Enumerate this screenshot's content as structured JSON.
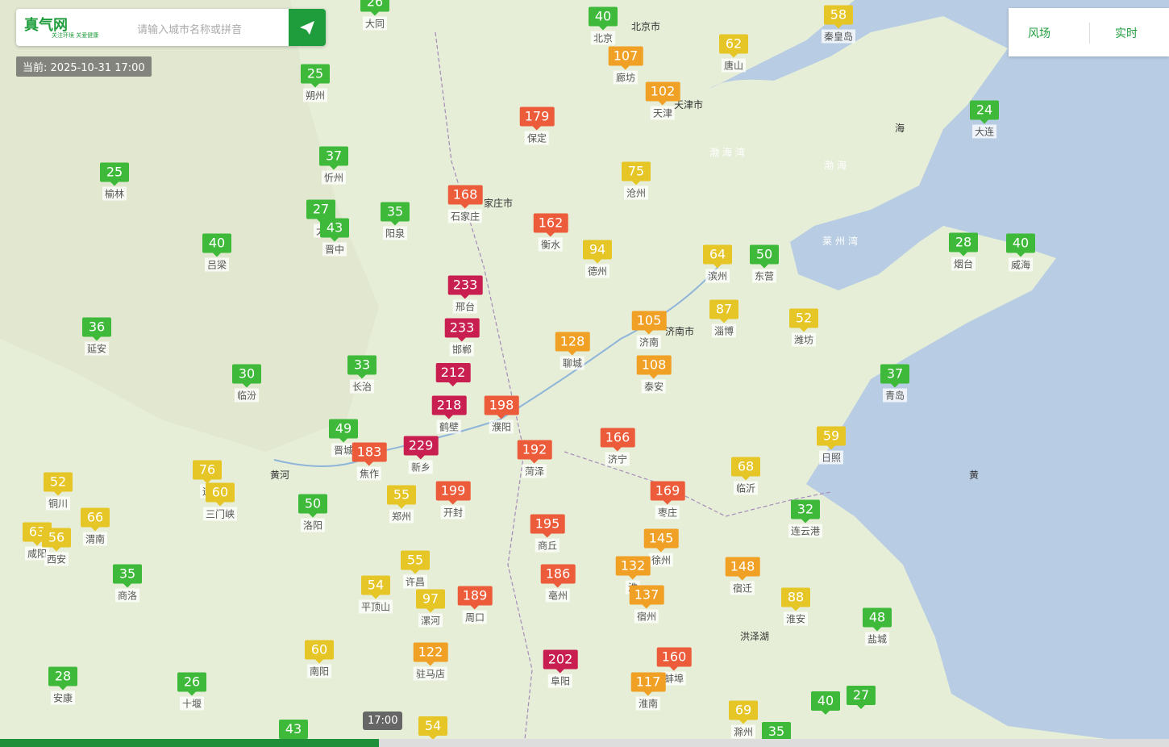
{
  "header": {
    "logo": "真气网",
    "tagline": "关注环境 关爱健康",
    "search_placeholder": "请输入城市名称或拼音",
    "current_time": "当前: 2025-10-31 17:00"
  },
  "tools": [
    "风场",
    "实时"
  ],
  "timeline": {
    "time": "17:00"
  },
  "map_labels": [
    "北京市",
    "天津市",
    "家庄市",
    "济南市",
    "渤海湾",
    "莱州湾",
    "渤海",
    "黄",
    "海",
    "洪泽湖",
    "黄河"
  ],
  "markers": [
    {
      "value": 26,
      "city": "大同"
    },
    {
      "value": 40,
      "city": "北京"
    },
    {
      "value": 58,
      "city": "秦皇岛"
    },
    {
      "value": 62,
      "city": "唐山"
    },
    {
      "value": 107,
      "city": "廊坊"
    },
    {
      "value": 102,
      "city": "天津"
    },
    {
      "value": 24,
      "city": "大连"
    },
    {
      "value": 25,
      "city": "朔州"
    },
    {
      "value": 179,
      "city": "保定"
    },
    {
      "value": 37,
      "city": "忻州"
    },
    {
      "value": 25,
      "city": "榆林"
    },
    {
      "value": 75,
      "city": "沧州"
    },
    {
      "value": 168,
      "city": "石家庄"
    },
    {
      "value": 27,
      "city": "太"
    },
    {
      "value": 43,
      "city": "晋中"
    },
    {
      "value": 35,
      "city": "阳泉"
    },
    {
      "value": 162,
      "city": "衡水"
    },
    {
      "value": 40,
      "city": "吕梁"
    },
    {
      "value": 94,
      "city": "德州"
    },
    {
      "value": 64,
      "city": "滨州"
    },
    {
      "value": 50,
      "city": "东营"
    },
    {
      "value": 28,
      "city": "烟台"
    },
    {
      "value": 40,
      "city": "威海"
    },
    {
      "value": 233,
      "city": "邢台"
    },
    {
      "value": 87,
      "city": "淄博"
    },
    {
      "value": 52,
      "city": "潍坊"
    },
    {
      "value": 36,
      "city": "延安"
    },
    {
      "value": 233,
      "city": "邯郸"
    },
    {
      "value": 105,
      "city": "济南"
    },
    {
      "value": 128,
      "city": "聊城"
    },
    {
      "value": 33,
      "city": "长治"
    },
    {
      "value": 108,
      "city": "泰安"
    },
    {
      "value": 212
    },
    {
      "value": 30,
      "city": "临汾"
    },
    {
      "value": 37,
      "city": "青岛"
    },
    {
      "value": 218,
      "city": "鹤壁"
    },
    {
      "value": 198,
      "city": "濮阳"
    },
    {
      "value": 49,
      "city": "晋城"
    },
    {
      "value": 59,
      "city": "日照"
    },
    {
      "value": 166,
      "city": "济宁"
    },
    {
      "value": 229,
      "city": "新乡"
    },
    {
      "value": 183,
      "city": "焦作"
    },
    {
      "value": 192,
      "city": "菏泽"
    },
    {
      "value": 76,
      "city": "运"
    },
    {
      "value": 68,
      "city": "临沂"
    },
    {
      "value": 52,
      "city": "铜川"
    },
    {
      "value": 60,
      "city": "三门峡"
    },
    {
      "value": 55,
      "city": "郑州"
    },
    {
      "value": 199,
      "city": "开封"
    },
    {
      "value": 169,
      "city": "枣庄"
    },
    {
      "value": 66,
      "city": "渭南"
    },
    {
      "value": 50,
      "city": "洛阳"
    },
    {
      "value": 32,
      "city": "连云港"
    },
    {
      "value": 63,
      "city": "咸阳"
    },
    {
      "value": 56,
      "city": "西安"
    },
    {
      "value": 195,
      "city": "商丘"
    },
    {
      "value": 145,
      "city": "徐州"
    },
    {
      "value": 55,
      "city": "许昌"
    },
    {
      "value": 132,
      "city": "淮"
    },
    {
      "value": 148,
      "city": "宿迁"
    },
    {
      "value": 35,
      "city": "商洛"
    },
    {
      "value": 186,
      "city": "亳州"
    },
    {
      "value": 54,
      "city": "平顶山"
    },
    {
      "value": 97,
      "city": "漯河"
    },
    {
      "value": 189,
      "city": "周口"
    },
    {
      "value": 137,
      "city": "宿州"
    },
    {
      "value": 88,
      "city": "淮安"
    },
    {
      "value": 48,
      "city": "盐城"
    },
    {
      "value": 60,
      "city": "南阳"
    },
    {
      "value": 122,
      "city": "驻马店"
    },
    {
      "value": 202,
      "city": "阜阳"
    },
    {
      "value": 160,
      "city": "蚌埠"
    },
    {
      "value": 28,
      "city": "安康"
    },
    {
      "value": 26,
      "city": "十堰"
    },
    {
      "value": 117,
      "city": "淮南"
    },
    {
      "value": 69,
      "city": "滁州"
    },
    {
      "value": 27
    },
    {
      "value": 40
    },
    {
      "value": 35
    },
    {
      "value": 43
    },
    {
      "value": 54
    }
  ]
}
